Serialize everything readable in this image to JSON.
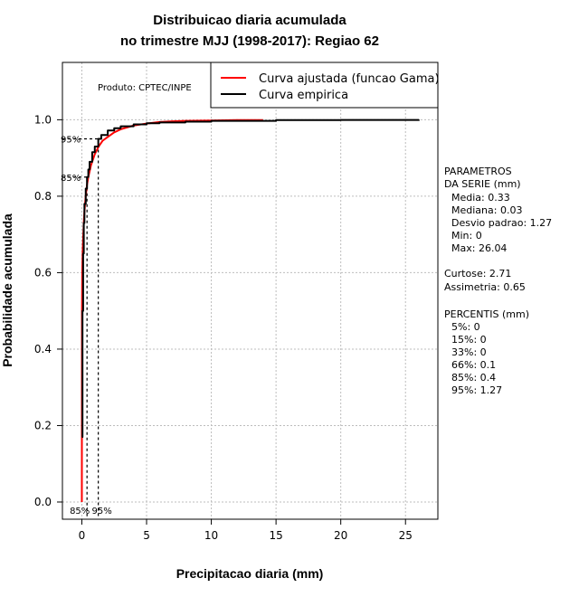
{
  "chart_data": {
    "type": "line",
    "title": "Distribuicao diaria acumulada",
    "subtitle": "no trimestre MJJ (1998-2017): Regiao 62",
    "xlabel": "Precipitacao diaria (mm)",
    "ylabel": "Probabilidade acumulada",
    "xlim": [
      -1.5,
      27.5
    ],
    "ylim": [
      -0.045,
      1.15
    ],
    "x_ticks": [
      0,
      5,
      10,
      15,
      20,
      25
    ],
    "y_ticks": [
      0.0,
      0.2,
      0.4,
      0.6,
      0.8,
      1.0
    ],
    "x_tick_labels": [
      "0",
      "5",
      "10",
      "15",
      "20",
      "25"
    ],
    "y_tick_labels": [
      "0.0",
      "0.2",
      "0.4",
      "0.6",
      "0.8",
      "1.0"
    ],
    "grid": true,
    "legend_position": "top-right",
    "product_label": "Produto: CPTEC/INPE",
    "series": [
      {
        "name": "Curva ajustada (funcao Gama)",
        "color": "#ff0000",
        "x": [
          0.0,
          0.01,
          0.03,
          0.06,
          0.1,
          0.15,
          0.2,
          0.3,
          0.4,
          0.5,
          0.7,
          1.0,
          1.3,
          1.6,
          2.0,
          2.5,
          3.0,
          4.0,
          5.0,
          6.0,
          7.0,
          8.0,
          10.0,
          12.0,
          14.0
        ],
        "y": [
          0.0,
          0.5,
          0.6,
          0.65,
          0.69,
          0.73,
          0.76,
          0.8,
          0.83,
          0.85,
          0.88,
          0.91,
          0.93,
          0.945,
          0.955,
          0.967,
          0.975,
          0.985,
          0.99,
          0.994,
          0.996,
          0.997,
          0.998,
          0.999,
          0.999
        ]
      },
      {
        "name": "Curva empirica",
        "color": "#000000",
        "x": [
          0.0,
          0.05,
          0.1,
          0.15,
          0.2,
          0.3,
          0.4,
          0.5,
          0.6,
          0.8,
          1.0,
          1.27,
          1.5,
          2.0,
          2.5,
          3.0,
          4.0,
          5.0,
          6.0,
          8.0,
          10.0,
          15.0,
          20.0,
          26.04
        ],
        "y": [
          0.17,
          0.5,
          0.65,
          0.73,
          0.78,
          0.82,
          0.85,
          0.87,
          0.89,
          0.915,
          0.93,
          0.95,
          0.96,
          0.972,
          0.978,
          0.983,
          0.988,
          0.991,
          0.993,
          0.995,
          0.997,
          0.999,
          0.9995,
          1.0
        ]
      }
    ],
    "reference_lines": [
      {
        "label": "85%",
        "x": 0.4,
        "y": 0.85
      },
      {
        "label": "95%",
        "x": 1.27,
        "y": 0.95
      }
    ],
    "bottom_labels": [
      "85%",
      "95%"
    ]
  },
  "side_panel": {
    "parametros_title": [
      "PARAMETROS",
      "DA SERIE (mm)"
    ],
    "parametros": [
      "Media: 0.33",
      "Mediana: 0.03",
      "Desvio padrao: 1.27",
      "Min: 0",
      "Max: 26.04"
    ],
    "extras": [
      "Curtose: 2.71",
      "Assimetria: 0.65"
    ],
    "percentis_title": "PERCENTIS (mm)",
    "percentis": [
      "5%: 0",
      "15%: 0",
      "33%: 0",
      "66%: 0.1",
      "85%: 0.4",
      "95%: 1.27"
    ]
  }
}
